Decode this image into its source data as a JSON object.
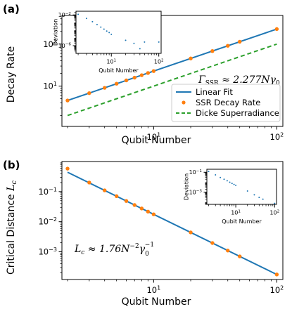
{
  "colors": {
    "fit": "#1f77b4",
    "points": "#ff7f0e",
    "dicke": "#2ca02c",
    "axes": "#000000",
    "background": "#ffffff"
  },
  "chart_data": [
    {
      "panel_label": "(a)",
      "type": "line",
      "xlabel": "Qubit Number",
      "ylabel": "Decay Rate",
      "xscale": "log",
      "yscale": "log",
      "xlim": [
        1.8,
        112
      ],
      "ylim": [
        1.1,
        480
      ],
      "x_ticks": [
        {
          "value": 10,
          "base": "10",
          "exp": "1"
        },
        {
          "value": 100,
          "base": "10",
          "exp": "2"
        }
      ],
      "y_ticks": [
        {
          "value": 10,
          "base": "10",
          "exp": "1"
        },
        {
          "value": 100,
          "base": "10",
          "exp": "2"
        }
      ],
      "annotation": {
        "lhs": "Γ",
        "lhs_sub": "SSR",
        "rhs": " ≈ 2.277Nγ",
        "rhs_sub": "0"
      },
      "legend_position": "lower-right",
      "legend": [
        "Linear Fit",
        "SSR Decay Rate",
        "Dicke Superradiance"
      ],
      "series": [
        {
          "name": "Linear Fit",
          "kind": "line",
          "x": [
            2,
            100
          ],
          "y": [
            4.55,
            227.7
          ]
        },
        {
          "name": "SSR Decay Rate",
          "kind": "scatter",
          "x": [
            2,
            3,
            4,
            5,
            6,
            7,
            8,
            9,
            10,
            20,
            30,
            40,
            50,
            100
          ],
          "y": [
            4.55,
            6.8,
            9.1,
            11.4,
            13.7,
            15.9,
            18.2,
            20.5,
            22.8,
            45.5,
            68.3,
            91.1,
            113.8,
            227.7
          ]
        },
        {
          "name": "Dicke Superradiance",
          "kind": "dashed",
          "x": [
            2,
            100
          ],
          "y": [
            2,
            100
          ]
        }
      ],
      "inset": {
        "ylabel": "Deviation",
        "xlabel": "Qubit Number",
        "xlim": [
          1.8,
          112
        ],
        "ylim": [
          1e-07,
          0.03
        ],
        "x_ticks": [
          {
            "value": 10,
            "base": "10",
            "exp": "1"
          },
          {
            "value": 100,
            "base": "10",
            "exp": "2"
          }
        ],
        "y_ticks": [
          {
            "value": 0.01,
            "base": "10",
            "exp": "−2"
          },
          {
            "value": 1e-06,
            "base": "10",
            "exp": "−6"
          }
        ],
        "x": [
          2,
          3,
          4,
          5,
          6,
          7,
          8,
          9,
          10,
          20,
          30,
          40,
          50,
          100
        ],
        "y": [
          0.012,
          0.0035,
          0.0013,
          0.00055,
          0.00026,
          0.00014,
          8e-05,
          5e-05,
          3e-05,
          5e-06,
          2e-06,
          4e-07,
          3e-06,
          3e-06
        ]
      }
    },
    {
      "panel_label": "(b)",
      "type": "line",
      "xlabel": "Qubit Number",
      "ylabel_main": "Critical Distance ",
      "ylabel_math": "L",
      "ylabel_sub": "c",
      "xscale": "log",
      "yscale": "log",
      "xlim": [
        1.8,
        112
      ],
      "ylim": [
        0.00012,
        1.0
      ],
      "x_ticks": [
        {
          "value": 10,
          "base": "10",
          "exp": "1"
        },
        {
          "value": 100,
          "base": "10",
          "exp": "2"
        }
      ],
      "y_ticks": [
        {
          "value": 0.1,
          "base": "10",
          "exp": "−1"
        },
        {
          "value": 0.01,
          "base": "10",
          "exp": "−2"
        },
        {
          "value": 0.001,
          "base": "10",
          "exp": "−3"
        }
      ],
      "annotation": {
        "lhs": "L",
        "lhs_sub": "c",
        "rhs": " ≈ 1.76N",
        "rhs_sup": "−2",
        "rhs2": "γ",
        "rhs2_sub": "0",
        "rhs2_sup": "−1"
      },
      "series": [
        {
          "name": "Linear Fit",
          "kind": "line",
          "x": [
            2,
            100
          ],
          "y": [
            0.44,
            0.000176
          ]
        },
        {
          "name": "SSR Decay Rate",
          "kind": "scatter",
          "x": [
            2,
            3,
            4,
            5,
            6,
            7,
            8,
            9,
            10,
            20,
            30,
            40,
            50,
            100
          ],
          "y": [
            0.58,
            0.2,
            0.11,
            0.0704,
            0.0489,
            0.0359,
            0.0275,
            0.0217,
            0.0176,
            0.0044,
            0.00196,
            0.0011,
            0.000704,
            0.000176
          ]
        }
      ],
      "inset": {
        "ylabel": "Deviation",
        "xlabel": "Qubit Number",
        "xlim": [
          1.8,
          112
        ],
        "ylim": [
          6e-05,
          0.2
        ],
        "x_ticks": [
          {
            "value": 10,
            "base": "10",
            "exp": "1"
          },
          {
            "value": 100,
            "base": "10",
            "exp": "2"
          }
        ],
        "y_ticks": [
          {
            "value": 0.1,
            "base": "10",
            "exp": "−1"
          },
          {
            "value": 0.001,
            "base": "10",
            "exp": "−3"
          }
        ],
        "x": [
          2,
          3,
          4,
          5,
          6,
          7,
          8,
          9,
          10,
          20,
          30,
          40,
          50,
          100
        ],
        "y": [
          0.12,
          0.055,
          0.03,
          0.02,
          0.014,
          0.01,
          0.0077,
          0.006,
          0.0049,
          0.0013,
          0.00055,
          0.0003,
          0.0002,
          7.5e-05
        ]
      }
    }
  ]
}
